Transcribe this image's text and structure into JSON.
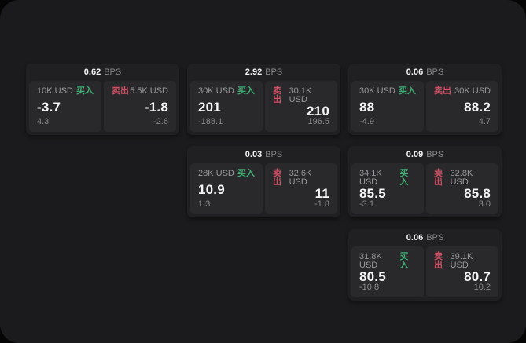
{
  "labels": {
    "bps": "BPS",
    "buy": "买入",
    "sell": "卖出"
  },
  "colors": {
    "surface": "#1b1b1d",
    "card_bg": "#202022",
    "panel_bg": "#29292b",
    "buy_green": "#3eae73",
    "sell_red": "#cc4f63",
    "value_white": "#f5f5f6",
    "muted_gray": "#98989c"
  },
  "cards": [
    {
      "bps": "0.62",
      "buy": {
        "amount": "10K USD",
        "value": "-3.7",
        "delta": "4.3"
      },
      "sell": {
        "amount": "5.5K USD",
        "value": "-1.8",
        "delta": "-2.6"
      }
    },
    {
      "bps": "2.92",
      "buy": {
        "amount": "30K USD",
        "value": "201",
        "delta": "-188.1"
      },
      "sell": {
        "amount": "30.1K USD",
        "value": "210",
        "delta": "196.5"
      }
    },
    {
      "bps": "0.06",
      "buy": {
        "amount": "30K USD",
        "value": "88",
        "delta": "-4.9"
      },
      "sell": {
        "amount": "30K USD",
        "value": "88.2",
        "delta": "4.7"
      }
    },
    {
      "bps": "0.03",
      "buy": {
        "amount": "28K USD",
        "value": "10.9",
        "delta": "1.3"
      },
      "sell": {
        "amount": "32.6K USD",
        "value": "11",
        "delta": "-1.8"
      }
    },
    {
      "bps": "0.09",
      "buy": {
        "amount": "34.1K USD",
        "value": "85.5",
        "delta": "-3.1"
      },
      "sell": {
        "amount": "32.8K USD",
        "value": "85.8",
        "delta": "3.0"
      }
    },
    {
      "bps": "0.06",
      "buy": {
        "amount": "31.8K USD",
        "value": "80.5",
        "delta": "-10.8"
      },
      "sell": {
        "amount": "39.1K USD",
        "value": "80.7",
        "delta": "10.2"
      }
    }
  ]
}
